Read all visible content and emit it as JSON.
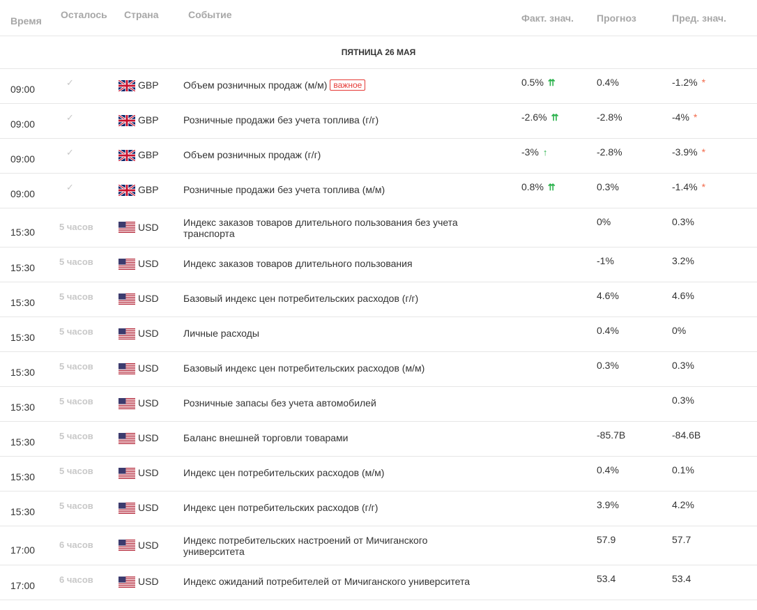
{
  "header": {
    "time": "Время",
    "left": "Осталось",
    "country": "Страна",
    "event": "Событие",
    "actual": "Факт. знач.",
    "forecast": "Прогноз",
    "previous": "Пред. знач."
  },
  "day_label": "ПЯТНИЦА 26 МАЯ",
  "badge_text": "важное",
  "icons": {
    "check": "✓",
    "arrow_double": "⇈",
    "arrow_single": "↑",
    "star": "*"
  },
  "colors": {
    "accent_red": "#e53935",
    "arrow_green": "#2bb24c",
    "star_orange": "#f26b4c",
    "muted": "#c8c8c8"
  },
  "rows": [
    {
      "time": "09:00",
      "left": "",
      "country": "gb",
      "currency": "GBP",
      "event": "Объем розничных продаж (м/м)",
      "badge": true,
      "actual": "0.5%",
      "arrow": "⇈",
      "forecast": "0.4%",
      "previous": "-1.2%",
      "star": true
    },
    {
      "time": "09:00",
      "left": "",
      "country": "gb",
      "currency": "GBP",
      "event": "Розничные продажи без учета топлива (г/г)",
      "badge": false,
      "actual": "-2.6%",
      "arrow": "⇈",
      "forecast": "-2.8%",
      "previous": "-4%",
      "star": true
    },
    {
      "time": "09:00",
      "left": "",
      "country": "gb",
      "currency": "GBP",
      "event": "Объем розничных продаж (г/г)",
      "badge": false,
      "actual": "-3%",
      "arrow": "↑",
      "forecast": "-2.8%",
      "previous": "-3.9%",
      "star": true
    },
    {
      "time": "09:00",
      "left": "",
      "country": "gb",
      "currency": "GBP",
      "event": "Розничные продажи без учета топлива (м/м)",
      "badge": false,
      "actual": "0.8%",
      "arrow": "⇈",
      "forecast": "0.3%",
      "previous": "-1.4%",
      "star": true
    },
    {
      "time": "15:30",
      "left": "5 часов",
      "country": "us",
      "currency": "USD",
      "event": "Индекс заказов товаров длительного пользования без учета транспорта",
      "badge": false,
      "actual": "",
      "arrow": "",
      "forecast": "0%",
      "previous": "0.3%",
      "star": false
    },
    {
      "time": "15:30",
      "left": "5 часов",
      "country": "us",
      "currency": "USD",
      "event": "Индекс заказов товаров длительного пользования",
      "badge": false,
      "actual": "",
      "arrow": "",
      "forecast": "-1%",
      "previous": "3.2%",
      "star": false
    },
    {
      "time": "15:30",
      "left": "5 часов",
      "country": "us",
      "currency": "USD",
      "event": "Базовый индекс цен потребительских расходов (г/г)",
      "badge": false,
      "actual": "",
      "arrow": "",
      "forecast": "4.6%",
      "previous": "4.6%",
      "star": false
    },
    {
      "time": "15:30",
      "left": "5 часов",
      "country": "us",
      "currency": "USD",
      "event": "Личные расходы",
      "badge": false,
      "actual": "",
      "arrow": "",
      "forecast": "0.4%",
      "previous": "0%",
      "star": false
    },
    {
      "time": "15:30",
      "left": "5 часов",
      "country": "us",
      "currency": "USD",
      "event": "Базовый индекс цен потребительских расходов (м/м)",
      "badge": false,
      "actual": "",
      "arrow": "",
      "forecast": "0.3%",
      "previous": "0.3%",
      "star": false
    },
    {
      "time": "15:30",
      "left": "5 часов",
      "country": "us",
      "currency": "USD",
      "event": "Розничные запасы без учета автомобилей",
      "badge": false,
      "actual": "",
      "arrow": "",
      "forecast": "",
      "previous": "0.3%",
      "star": false
    },
    {
      "time": "15:30",
      "left": "5 часов",
      "country": "us",
      "currency": "USD",
      "event": "Баланс внешней торговли товарами",
      "badge": false,
      "actual": "",
      "arrow": "",
      "forecast": "-85.7B",
      "previous": "-84.6B",
      "star": false
    },
    {
      "time": "15:30",
      "left": "5 часов",
      "country": "us",
      "currency": "USD",
      "event": "Индекс цен потребительских расходов (м/м)",
      "badge": false,
      "actual": "",
      "arrow": "",
      "forecast": "0.4%",
      "previous": "0.1%",
      "star": false
    },
    {
      "time": "15:30",
      "left": "5 часов",
      "country": "us",
      "currency": "USD",
      "event": "Индекс цен потребительских расходов (г/г)",
      "badge": false,
      "actual": "",
      "arrow": "",
      "forecast": "3.9%",
      "previous": "4.2%",
      "star": false
    },
    {
      "time": "17:00",
      "left": "6 часов",
      "country": "us",
      "currency": "USD",
      "event": "Индекс потребительских настроений от Мичиганского университета",
      "badge": false,
      "actual": "",
      "arrow": "",
      "forecast": "57.9",
      "previous": "57.7",
      "star": false
    },
    {
      "time": "17:00",
      "left": "6 часов",
      "country": "us",
      "currency": "USD",
      "event": "Индекс ожиданий потребителей от Мичиганского университета",
      "badge": false,
      "actual": "",
      "arrow": "",
      "forecast": "53.4",
      "previous": "53.4",
      "star": false
    }
  ]
}
